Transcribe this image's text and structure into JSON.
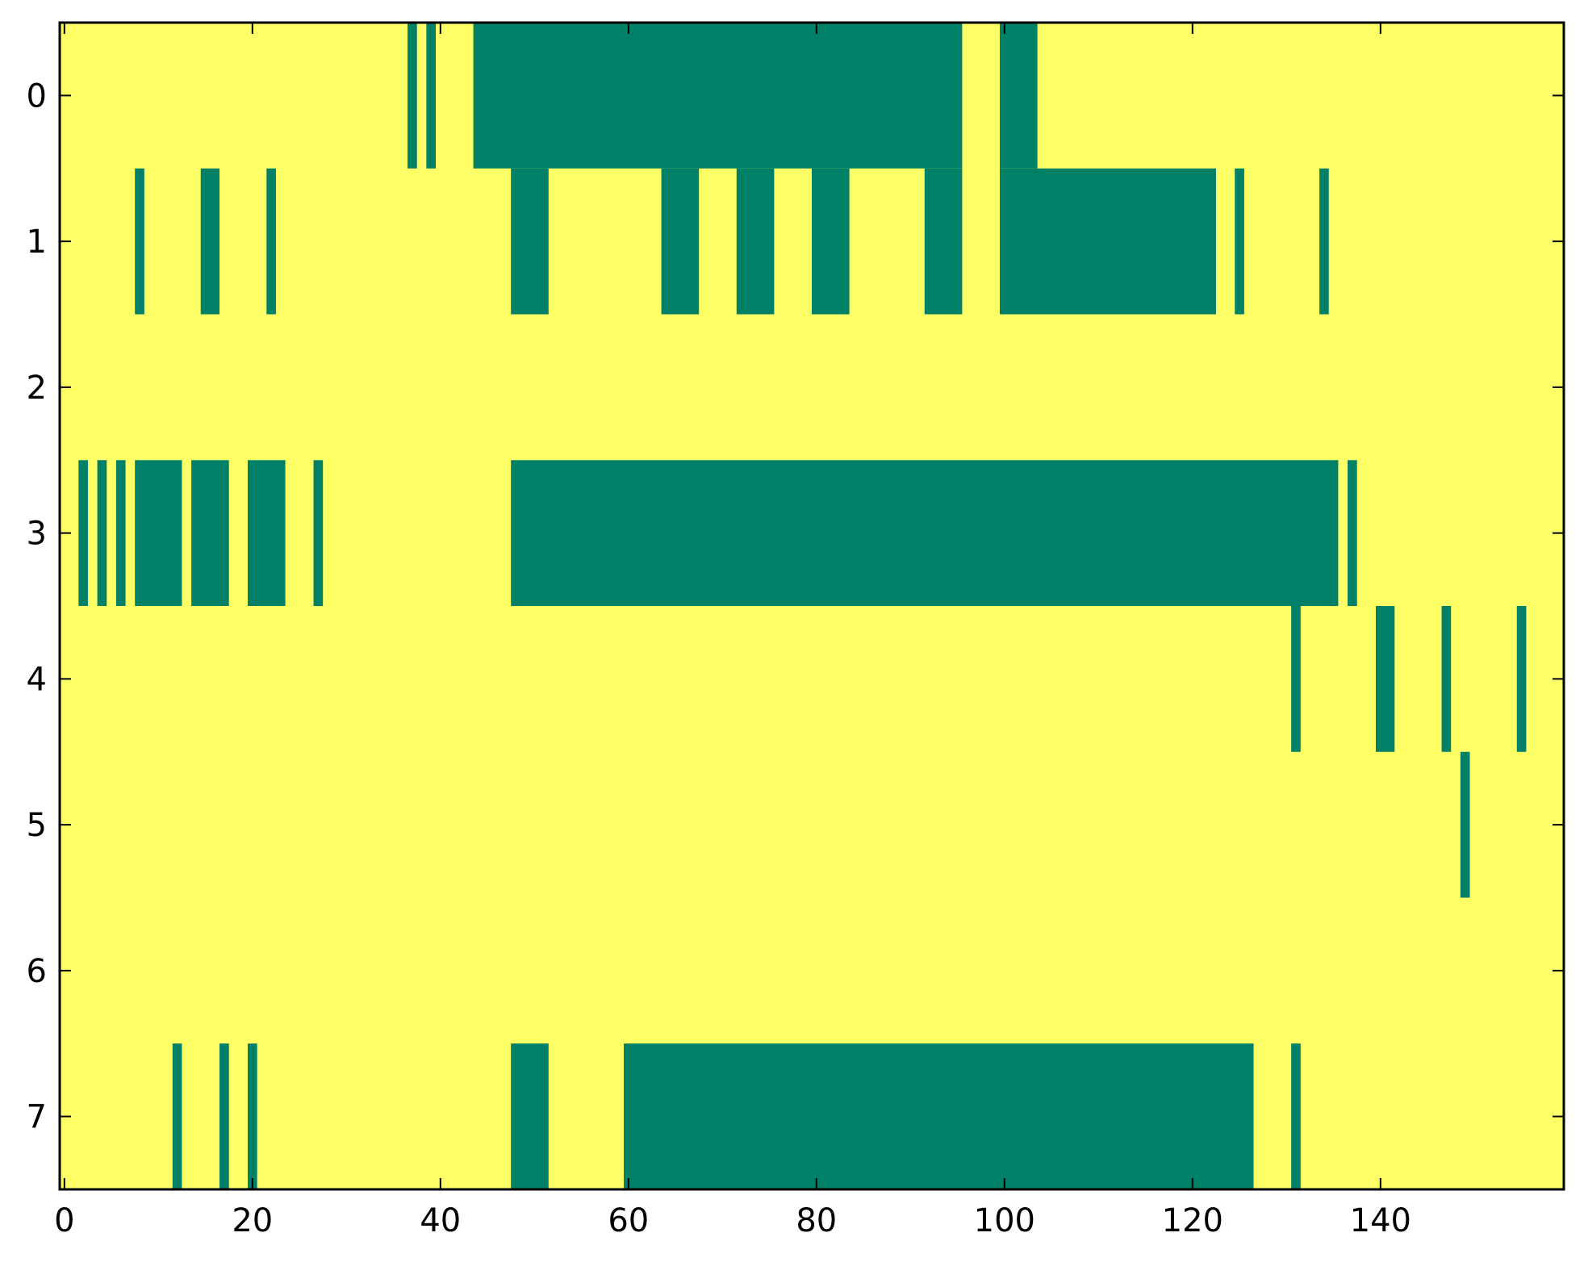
{
  "chart_data": {
    "type": "heatmap",
    "title": "",
    "xlabel": "",
    "ylabel": "",
    "xlim": [
      -0.5,
      159.5
    ],
    "ylim": [
      7.5,
      -0.5
    ],
    "x_ticks": [
      0,
      20,
      40,
      60,
      80,
      100,
      120,
      140
    ],
    "x_tick_labels": [
      "0",
      "20",
      "40",
      "60",
      "80",
      "100",
      "120",
      "140"
    ],
    "y_ticks": [
      0,
      1,
      2,
      3,
      4,
      5,
      6,
      7
    ],
    "y_tick_labels": [
      "0",
      "1",
      "2",
      "3",
      "4",
      "5",
      "6",
      "7"
    ],
    "grid": false,
    "legend": "none",
    "colors": {
      "background": "#ffff66",
      "marked": "#008066"
    },
    "rows": [
      {
        "row": 0,
        "marked_ranges": [
          [
            37,
            37
          ],
          [
            39,
            39
          ],
          [
            44,
            95
          ],
          [
            100,
            103
          ]
        ]
      },
      {
        "row": 1,
        "marked_ranges": [
          [
            8,
            8
          ],
          [
            15,
            16
          ],
          [
            22,
            22
          ],
          [
            48,
            51
          ],
          [
            64,
            67
          ],
          [
            72,
            75
          ],
          [
            80,
            83
          ],
          [
            92,
            95
          ],
          [
            100,
            122
          ],
          [
            125,
            125
          ],
          [
            134,
            134
          ]
        ]
      },
      {
        "row": 2,
        "marked_ranges": []
      },
      {
        "row": 3,
        "marked_ranges": [
          [
            2,
            2
          ],
          [
            4,
            4
          ],
          [
            6,
            6
          ],
          [
            8,
            12
          ],
          [
            14,
            17
          ],
          [
            20,
            23
          ],
          [
            27,
            27
          ],
          [
            48,
            135
          ],
          [
            137,
            137
          ]
        ]
      },
      {
        "row": 4,
        "marked_ranges": [
          [
            131,
            131
          ],
          [
            140,
            141
          ],
          [
            147,
            147
          ],
          [
            155,
            155
          ]
        ]
      },
      {
        "row": 5,
        "marked_ranges": [
          [
            149,
            149
          ]
        ]
      },
      {
        "row": 6,
        "marked_ranges": []
      },
      {
        "row": 7,
        "marked_ranges": [
          [
            12,
            12
          ],
          [
            17,
            17
          ],
          [
            20,
            20
          ],
          [
            48,
            51
          ],
          [
            60,
            126
          ],
          [
            131,
            131
          ]
        ]
      }
    ]
  }
}
